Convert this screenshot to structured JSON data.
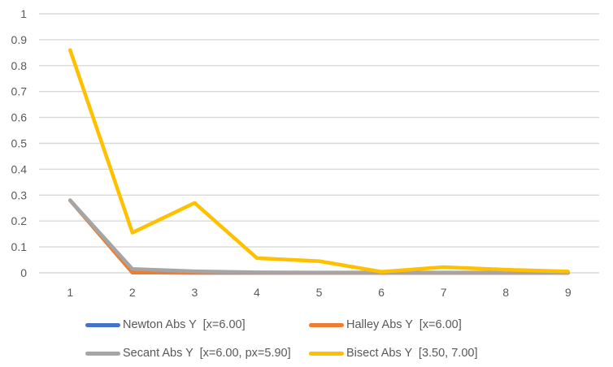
{
  "chart_data": {
    "type": "line",
    "title": "",
    "xlabel": "",
    "ylabel": "",
    "categories": [
      "1",
      "2",
      "3",
      "4",
      "5",
      "6",
      "7",
      "8",
      "9"
    ],
    "series": [
      {
        "name": "Newton Abs Y  [x=6.00]",
        "color": "#4472C4",
        "values": [
          0.28,
          0.001,
          0,
          0,
          0,
          0,
          0,
          0,
          0
        ]
      },
      {
        "name": "Halley Abs Y  [x=6.00]",
        "color": "#ED7D31",
        "values": [
          0.28,
          0.001,
          0,
          0,
          0,
          0,
          0,
          0,
          0
        ]
      },
      {
        "name": "Secant Abs Y  [x=6.00, px=5.90]",
        "color": "#A5A5A5",
        "values": [
          0.28,
          0.015,
          0.006,
          0.002,
          0.001,
          0.001,
          0.001,
          0.001,
          0.001
        ]
      },
      {
        "name": "Bisect Abs Y  [3.50, 7.00]",
        "color": "#FFC000",
        "values": [
          0.86,
          0.155,
          0.27,
          0.057,
          0.045,
          0.004,
          0.022,
          0.012,
          0.005
        ]
      }
    ],
    "ylim": [
      0,
      1
    ],
    "ytick_labels": [
      "0",
      "0.1",
      "0.2",
      "0.3",
      "0.4",
      "0.5",
      "0.6",
      "0.7",
      "0.8",
      "0.9",
      "1"
    ],
    "grid": true,
    "legend_position": "bottom",
    "colors": {
      "gridline": "#D9D9D9",
      "axis_text": "#595959",
      "background": "#FFFFFF"
    }
  }
}
